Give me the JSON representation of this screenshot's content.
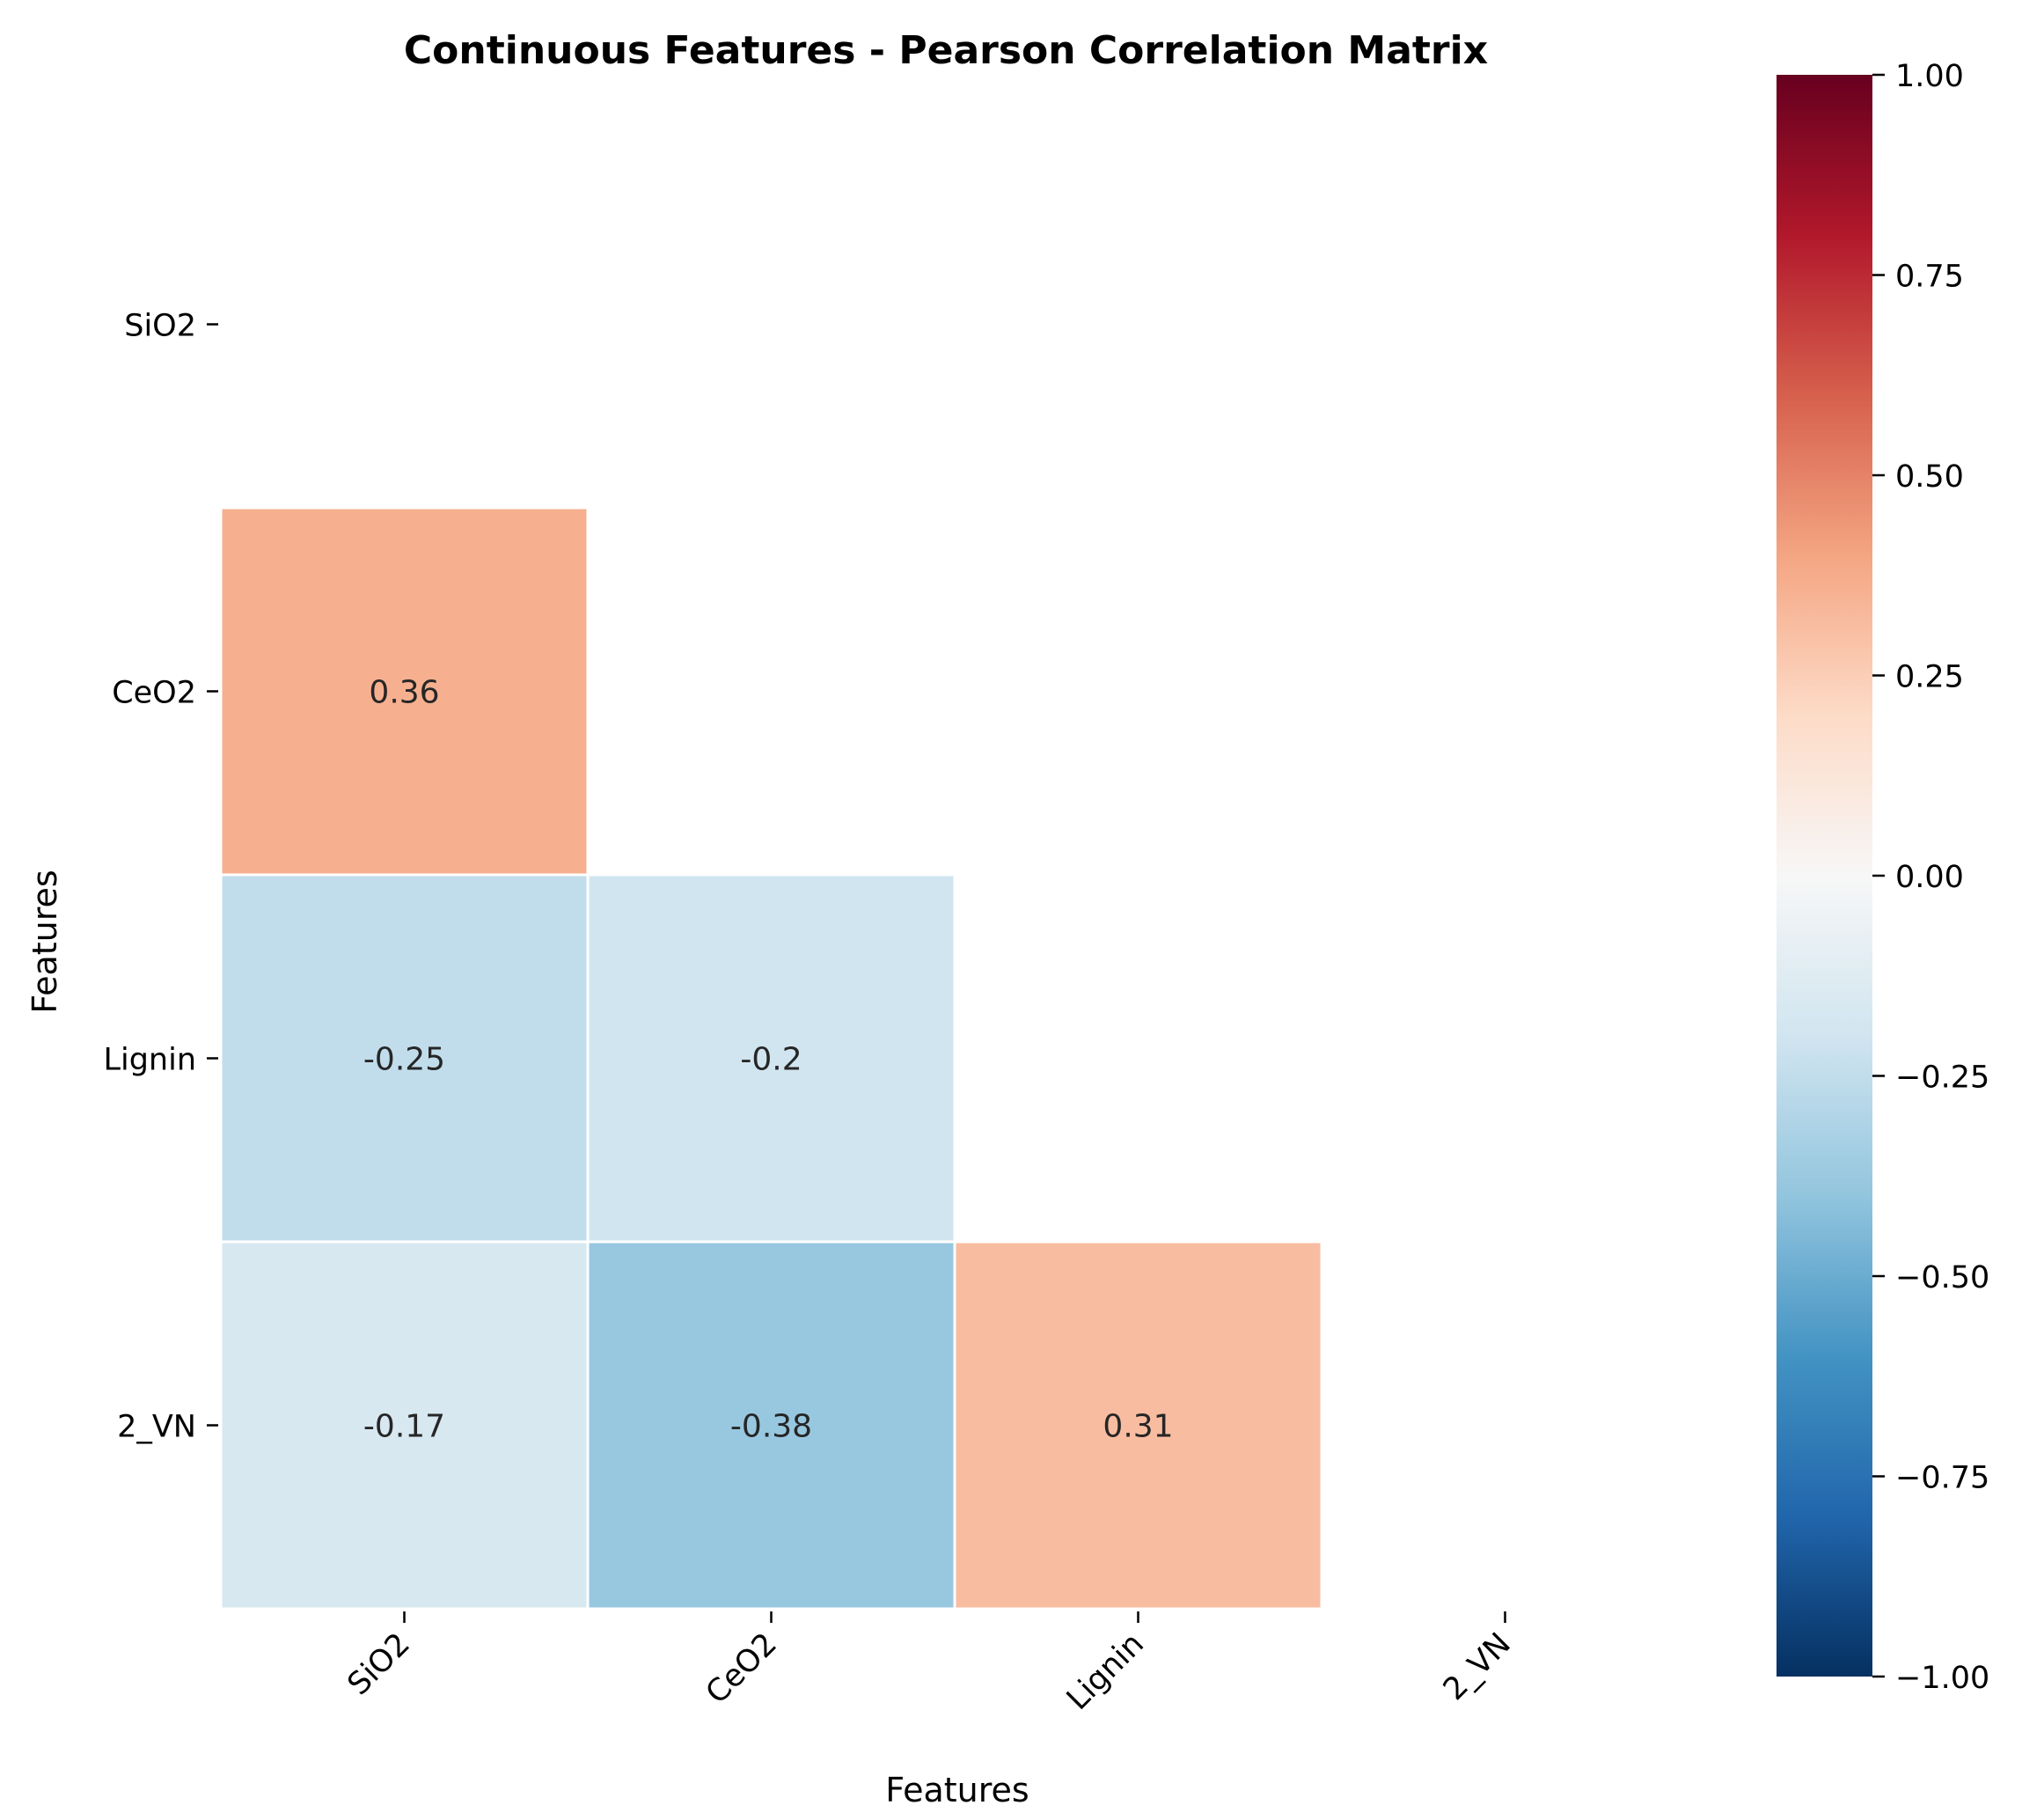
{
  "chart_data": {
    "type": "heatmap",
    "title": "Continuous Features - Pearson Correlation Matrix",
    "xlabel": "Features",
    "ylabel": "Features",
    "x_categories": [
      "SiO2",
      "CeO2",
      "Lignin",
      "2_VN"
    ],
    "y_categories": [
      "SiO2",
      "CeO2",
      "Lignin",
      "2_VN"
    ],
    "mask": "upper triangle including diagonal",
    "cells": [
      {
        "row": "CeO2",
        "col": "SiO2",
        "value": 0.36,
        "label": "0.36"
      },
      {
        "row": "Lignin",
        "col": "SiO2",
        "value": -0.25,
        "label": "-0.25"
      },
      {
        "row": "Lignin",
        "col": "CeO2",
        "value": -0.2,
        "label": "-0.2"
      },
      {
        "row": "2_VN",
        "col": "SiO2",
        "value": -0.17,
        "label": "-0.17"
      },
      {
        "row": "2_VN",
        "col": "CeO2",
        "value": -0.38,
        "label": "-0.38"
      },
      {
        "row": "2_VN",
        "col": "Lignin",
        "value": 0.31,
        "label": "0.31"
      }
    ],
    "colormap": "RdBu_r",
    "vmin": -1,
    "vmax": 1,
    "colorbar_ticks": [
      1.0,
      0.75,
      0.5,
      0.25,
      0.0,
      -0.25,
      -0.5,
      -0.75,
      -1.0
    ],
    "colorbar_tick_labels": [
      "1.00",
      "0.75",
      "0.50",
      "0.25",
      "0.00",
      "−0.25",
      "−0.50",
      "−0.75",
      "−1.00"
    ]
  }
}
